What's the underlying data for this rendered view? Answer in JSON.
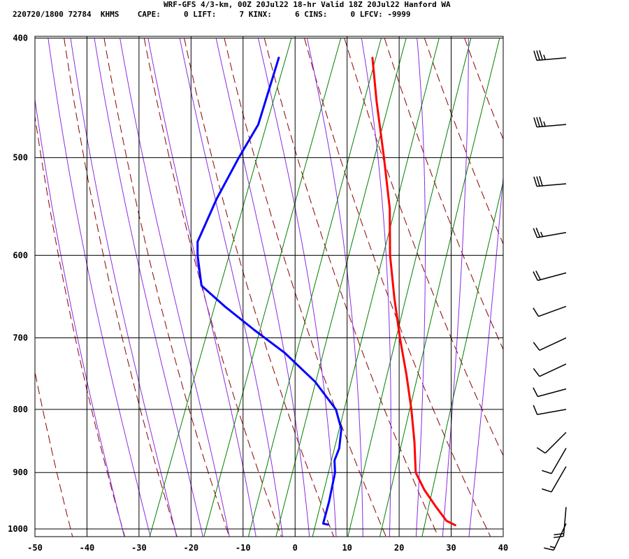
{
  "header": {
    "line1": "WRF-GFS 4/3-km, 00Z 20Jul22 18-hr Valid 18Z 20Jul22 Hanford WA",
    "line2": "220720/1800 72784  KHMS    CAPE:     0 LIFT:     7 KINX:     6 CINS:     0 LFCV: -9999"
  },
  "colors": {
    "temperature": "#ff0000",
    "dewpoint": "#0000ff",
    "dry_adiabat": "#8b0000",
    "moist_adiabat": "#8a2be2",
    "mixing_ratio": "#008000",
    "grid": "#000000",
    "barb": "#000000"
  },
  "chart_data": {
    "type": "line",
    "subtype": "skew-t log-p sounding",
    "xlabel": "",
    "ylabel": "",
    "xlim": [
      -50,
      40
    ],
    "ylim": [
      1040,
      400
    ],
    "x_scale": "skewed temperature (deg C)",
    "y_scale": "log pressure (hPa)",
    "grid": true,
    "x_ticks": [
      "-50",
      "-40",
      "-30",
      "-20",
      "-10",
      "0",
      "10",
      "20",
      "30",
      "40"
    ],
    "y_ticks": [
      "400",
      "500",
      "600",
      "700",
      "800",
      "900",
      "1000"
    ],
    "series": [
      {
        "kind": "temperature",
        "points": [
          {
            "p": 415,
            "t": -20
          },
          {
            "p": 450,
            "t": -16
          },
          {
            "p": 500,
            "t": -10.4
          },
          {
            "p": 550,
            "t": -5.5
          },
          {
            "p": 600,
            "t": -2
          },
          {
            "p": 650,
            "t": 2
          },
          {
            "p": 700,
            "t": 6
          },
          {
            "p": 750,
            "t": 10
          },
          {
            "p": 800,
            "t": 13.5
          },
          {
            "p": 850,
            "t": 16.5
          },
          {
            "p": 900,
            "t": 19
          },
          {
            "p": 930,
            "t": 22
          },
          {
            "p": 960,
            "t": 25.5
          },
          {
            "p": 985,
            "t": 28.5
          },
          {
            "p": 993,
            "t": 30.5
          }
        ]
      },
      {
        "kind": "dewpoint",
        "points": [
          {
            "p": 415,
            "t": -38
          },
          {
            "p": 470,
            "t": -37
          },
          {
            "p": 500,
            "t": -38.3
          },
          {
            "p": 540,
            "t": -39.5
          },
          {
            "p": 585,
            "t": -40
          },
          {
            "p": 600,
            "t": -39
          },
          {
            "p": 635,
            "t": -36
          },
          {
            "p": 660,
            "t": -30
          },
          {
            "p": 690,
            "t": -22.5
          },
          {
            "p": 720,
            "t": -15
          },
          {
            "p": 760,
            "t": -7
          },
          {
            "p": 800,
            "t": -1
          },
          {
            "p": 830,
            "t": 1.5
          },
          {
            "p": 860,
            "t": 2.5
          },
          {
            "p": 880,
            "t": 2.5
          },
          {
            "p": 900,
            "t": 3.5
          },
          {
            "p": 950,
            "t": 4.5
          },
          {
            "p": 990,
            "t": 5
          },
          {
            "p": 992,
            "t": 6
          }
        ]
      }
    ],
    "wind_barbs": [
      {
        "p": 415,
        "dir": 265,
        "spd": 35
      },
      {
        "p": 470,
        "dir": 265,
        "spd": 35
      },
      {
        "p": 525,
        "dir": 265,
        "spd": 30
      },
      {
        "p": 575,
        "dir": 260,
        "spd": 25
      },
      {
        "p": 620,
        "dir": 255,
        "spd": 20
      },
      {
        "p": 660,
        "dir": 250,
        "spd": 10
      },
      {
        "p": 700,
        "dir": 245,
        "spd": 10
      },
      {
        "p": 735,
        "dir": 245,
        "spd": 10
      },
      {
        "p": 770,
        "dir": 255,
        "spd": 10
      },
      {
        "p": 800,
        "dir": 260,
        "spd": 10
      },
      {
        "p": 835,
        "dir": 225,
        "spd": 10
      },
      {
        "p": 860,
        "dir": 210,
        "spd": 10
      },
      {
        "p": 890,
        "dir": 210,
        "spd": 10
      },
      {
        "p": 960,
        "dir": 185,
        "spd": 20
      },
      {
        "p": 990,
        "dir": 205,
        "spd": 15
      }
    ]
  }
}
